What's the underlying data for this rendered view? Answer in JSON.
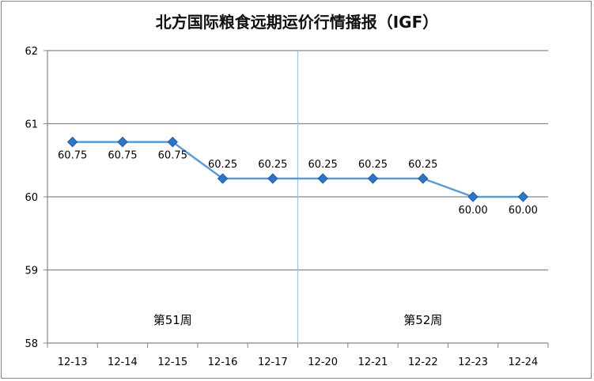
{
  "chart_data": {
    "type": "line",
    "title": "北方国际粮食远期运价行情播报（IGF）",
    "categories": [
      "12-13",
      "12-14",
      "12-15",
      "12-16",
      "12-17",
      "12-20",
      "12-21",
      "12-22",
      "12-23",
      "12-24"
    ],
    "series": [
      {
        "values": [
          60.75,
          60.75,
          60.75,
          60.25,
          60.25,
          60.25,
          60.25,
          60.25,
          60.0,
          60.0
        ],
        "labels": [
          "60.75",
          "60.75",
          "60.75",
          "60.25",
          "60.25",
          "60.25",
          "60.25",
          "60.25",
          "60.00",
          "60.00"
        ]
      }
    ],
    "ylim": [
      58,
      62
    ],
    "yticks": [
      "58",
      "59",
      "60",
      "61",
      "62"
    ],
    "grid": true,
    "annotations": [
      {
        "text": "第51周",
        "after_category_index": 2
      },
      {
        "text": "第52周",
        "after_category_index": 7
      }
    ],
    "week_divider_between": [
      4,
      5
    ],
    "colors": {
      "line": "#5b9bd5",
      "marker": "#2e75c4",
      "marker_edge": "#1f5fa8",
      "grid": "#868686",
      "divider": "#9dc3e6"
    }
  }
}
